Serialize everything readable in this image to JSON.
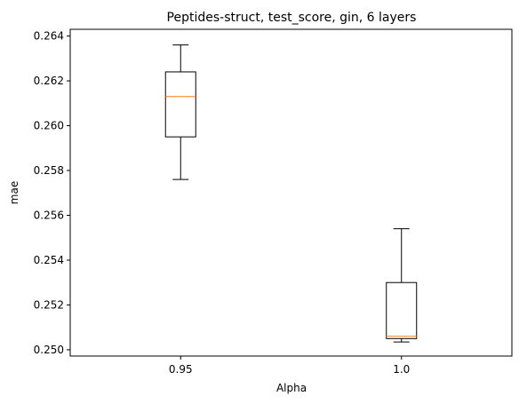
{
  "chart_data": {
    "type": "box",
    "title": "Peptides-struct, test_score, gin, 6 layers",
    "xlabel": "Alpha",
    "ylabel": "mae",
    "categories": [
      "0.95",
      "1.0"
    ],
    "boxes": [
      {
        "category": "0.95",
        "whisker_low": 0.2576,
        "q1": 0.2595,
        "median": 0.2613,
        "q3": 0.2624,
        "whisker_high": 0.2636
      },
      {
        "category": "1.0",
        "whisker_low": 0.25035,
        "q1": 0.2505,
        "median": 0.2506,
        "q3": 0.253,
        "whisker_high": 0.2554
      }
    ],
    "ylim": [
      0.24972,
      0.2643
    ],
    "yticks": [
      "0.250",
      "0.252",
      "0.254",
      "0.256",
      "0.258",
      "0.260",
      "0.262",
      "0.264"
    ],
    "grid": false,
    "colors": {
      "box": "#000000",
      "median": "#ff7f0e",
      "axes": "#000000"
    }
  }
}
